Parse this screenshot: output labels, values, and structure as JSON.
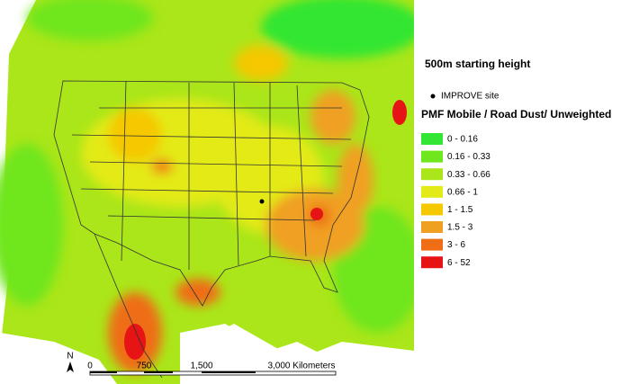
{
  "title": "500m starting height",
  "site_marker": "IMPROVE site",
  "legend": {
    "title": "PMF Mobile / Road Dust/ Unweighted",
    "items": [
      {
        "label": "0 - 0.16",
        "color": "#33e633"
      },
      {
        "label": "0.16 - 0.33",
        "color": "#70e61c"
      },
      {
        "label": "0.33 - 0.66",
        "color": "#aae619"
      },
      {
        "label": "0.66 - 1",
        "color": "#e3ea19"
      },
      {
        "label": "1 - 1.5",
        "color": "#f5c800"
      },
      {
        "label": "1.5 - 3",
        "color": "#f0a020"
      },
      {
        "label": "3 - 6",
        "color": "#ef6d14"
      },
      {
        "label": "6 - 52",
        "color": "#e61414"
      }
    ]
  },
  "scale_bar": {
    "labels": [
      "0",
      "750",
      "1,500",
      "3,000 Kilometers"
    ]
  },
  "north": "N"
}
